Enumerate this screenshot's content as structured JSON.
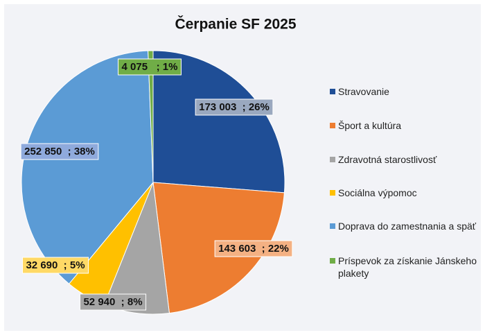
{
  "chart_data": {
    "type": "pie",
    "title": "Čerpanie SF 2025",
    "categories": [
      "Stravovanie",
      "Šport a kultúra",
      "Zdravotná starostlivosť",
      "Sociálna výpomoc",
      "Doprava do zamestnania a späť",
      "Príspevok za získanie Jánskeho plakety"
    ],
    "values": [
      173003,
      143603,
      52940,
      32690,
      252850,
      4075
    ],
    "value_labels": [
      "173 003  ; 26%",
      "143 603  ; 22%",
      "52 940  ; 8%",
      "32 690  ; 5%",
      "252 850  ; 38%",
      "4 075   ; 1%"
    ],
    "colors": [
      "#1f4e96",
      "#ed7d31",
      "#a5a5a5",
      "#ffc000",
      "#5b9bd5",
      "#70ad47"
    ],
    "legend": "right"
  }
}
